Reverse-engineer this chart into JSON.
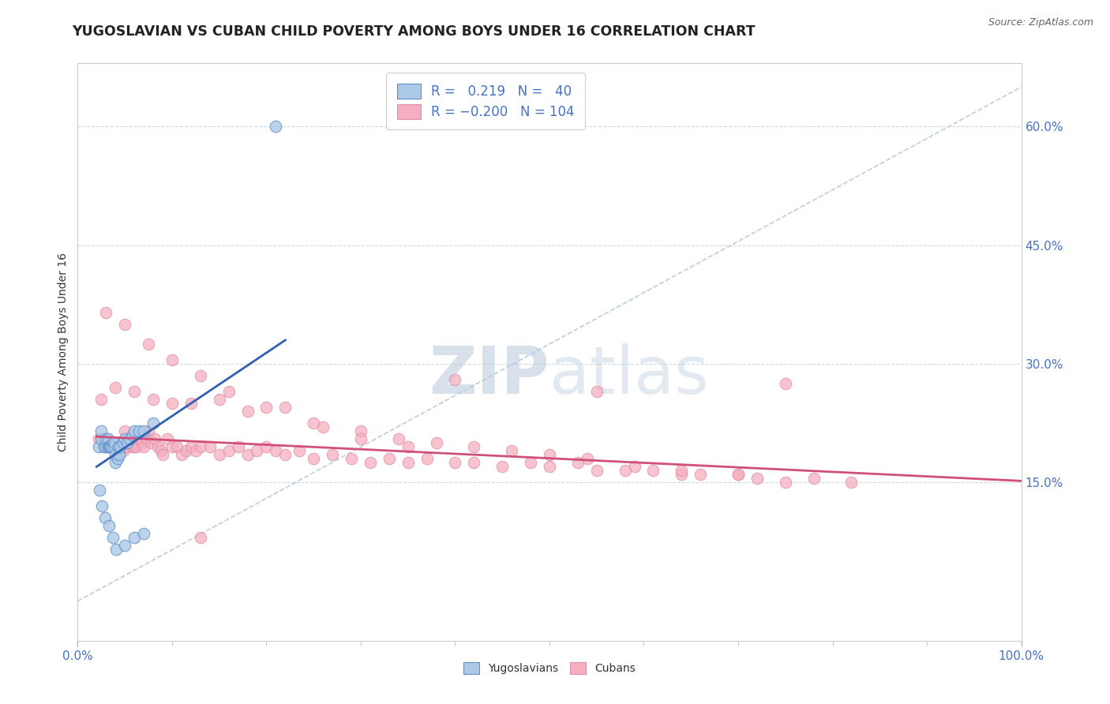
{
  "title": "YUGOSLAVIAN VS CUBAN CHILD POVERTY AMONG BOYS UNDER 16 CORRELATION CHART",
  "source": "Source: ZipAtlas.com",
  "ylabel": "Child Poverty Among Boys Under 16",
  "right_yticks": [
    "15.0%",
    "30.0%",
    "45.0%",
    "60.0%"
  ],
  "right_ytick_vals": [
    0.15,
    0.3,
    0.45,
    0.6
  ],
  "legend_entries": [
    {
      "label": "Yugoslavians",
      "R": 0.219,
      "N": 40,
      "color": "#adc9e8"
    },
    {
      "label": "Cubans",
      "R": -0.2,
      "N": 104,
      "color": "#f4afc0"
    }
  ],
  "yug_trend_color": "#3060b0",
  "cub_trend_color": "#d0507a",
  "diag_line_color": "#b8c8d8",
  "background_color": "#ffffff",
  "watermark": "ZIPatlas",
  "watermark_color_zip": "#c0cfe8",
  "watermark_color_atlas": "#c8d8e8",
  "xlim": [
    0.0,
    1.0
  ],
  "ylim": [
    -0.05,
    0.68
  ],
  "yug_x": [
    0.022,
    0.025,
    0.025,
    0.028,
    0.03,
    0.03,
    0.032,
    0.032,
    0.033,
    0.034,
    0.035,
    0.036,
    0.037,
    0.038,
    0.039,
    0.04,
    0.04,
    0.042,
    0.043,
    0.044,
    0.045,
    0.048,
    0.05,
    0.052,
    0.055,
    0.058,
    0.06,
    0.065,
    0.07,
    0.08,
    0.023,
    0.026,
    0.029,
    0.033,
    0.037,
    0.041,
    0.05,
    0.06,
    0.07,
    0.21
  ],
  "yug_y": [
    0.195,
    0.205,
    0.215,
    0.195,
    0.195,
    0.205,
    0.195,
    0.205,
    0.195,
    0.195,
    0.195,
    0.195,
    0.2,
    0.195,
    0.2,
    0.175,
    0.185,
    0.18,
    0.195,
    0.185,
    0.195,
    0.2,
    0.205,
    0.2,
    0.205,
    0.21,
    0.215,
    0.215,
    0.215,
    0.225,
    0.14,
    0.12,
    0.105,
    0.095,
    0.08,
    0.065,
    0.07,
    0.08,
    0.085,
    0.6
  ],
  "cub_x": [
    0.022,
    0.026,
    0.028,
    0.03,
    0.032,
    0.034,
    0.036,
    0.038,
    0.04,
    0.042,
    0.044,
    0.046,
    0.048,
    0.05,
    0.052,
    0.055,
    0.058,
    0.06,
    0.062,
    0.065,
    0.068,
    0.07,
    0.073,
    0.075,
    0.078,
    0.082,
    0.085,
    0.088,
    0.09,
    0.095,
    0.1,
    0.105,
    0.11,
    0.115,
    0.12,
    0.125,
    0.13,
    0.14,
    0.15,
    0.16,
    0.17,
    0.18,
    0.19,
    0.2,
    0.21,
    0.22,
    0.235,
    0.25,
    0.27,
    0.29,
    0.31,
    0.33,
    0.35,
    0.37,
    0.4,
    0.42,
    0.45,
    0.48,
    0.5,
    0.53,
    0.55,
    0.58,
    0.61,
    0.64,
    0.66,
    0.7,
    0.72,
    0.75,
    0.78,
    0.82,
    0.025,
    0.04,
    0.06,
    0.08,
    0.1,
    0.12,
    0.15,
    0.18,
    0.22,
    0.26,
    0.3,
    0.34,
    0.38,
    0.42,
    0.46,
    0.5,
    0.54,
    0.59,
    0.64,
    0.7,
    0.03,
    0.05,
    0.075,
    0.1,
    0.13,
    0.16,
    0.2,
    0.25,
    0.3,
    0.35,
    0.13,
    0.4,
    0.55,
    0.75
  ],
  "cub_y": [
    0.205,
    0.205,
    0.195,
    0.2,
    0.195,
    0.2,
    0.2,
    0.2,
    0.195,
    0.195,
    0.185,
    0.195,
    0.19,
    0.215,
    0.195,
    0.205,
    0.195,
    0.195,
    0.195,
    0.205,
    0.2,
    0.195,
    0.205,
    0.215,
    0.2,
    0.205,
    0.195,
    0.19,
    0.185,
    0.205,
    0.195,
    0.195,
    0.185,
    0.19,
    0.195,
    0.19,
    0.195,
    0.195,
    0.185,
    0.19,
    0.195,
    0.185,
    0.19,
    0.195,
    0.19,
    0.185,
    0.19,
    0.18,
    0.185,
    0.18,
    0.175,
    0.18,
    0.175,
    0.18,
    0.175,
    0.175,
    0.17,
    0.175,
    0.17,
    0.175,
    0.165,
    0.165,
    0.165,
    0.16,
    0.16,
    0.16,
    0.155,
    0.15,
    0.155,
    0.15,
    0.255,
    0.27,
    0.265,
    0.255,
    0.25,
    0.25,
    0.255,
    0.24,
    0.245,
    0.22,
    0.215,
    0.205,
    0.2,
    0.195,
    0.19,
    0.185,
    0.18,
    0.17,
    0.165,
    0.16,
    0.365,
    0.35,
    0.325,
    0.305,
    0.285,
    0.265,
    0.245,
    0.225,
    0.205,
    0.195,
    0.08,
    0.28,
    0.265,
    0.275
  ]
}
